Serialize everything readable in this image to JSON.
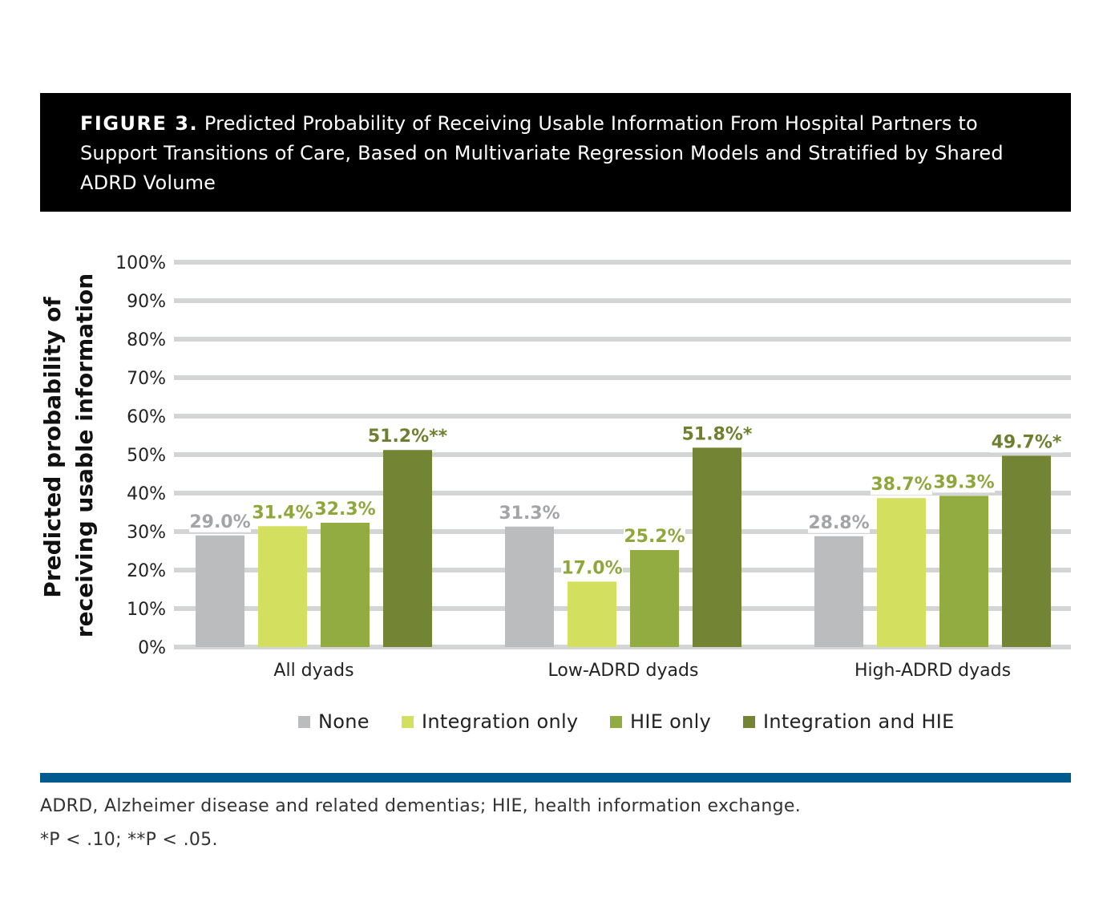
{
  "header": {
    "figure_label": "FIGURE 3.",
    "figure_title": "Predicted Probability of Receiving Usable Information From Hospital Partners to Support Transitions of Care, Based on Multivariate Regression Models and Stratified by Shared ADRD Volume"
  },
  "chart_data": {
    "type": "bar",
    "ylabel_line1": "Predicted probability of",
    "ylabel_line2": "receiving usable information",
    "ylim": [
      0,
      100
    ],
    "yticks": [
      "0%",
      "10%",
      "20%",
      "30%",
      "40%",
      "50%",
      "60%",
      "70%",
      "80%",
      "90%",
      "100%"
    ],
    "categories": [
      "All dyads",
      "Low-ADRD dyads",
      "High-ADRD dyads"
    ],
    "series": [
      {
        "name": "None",
        "color": "#bbbcbe",
        "label_color": "#a3a4a7",
        "values": [
          29.0,
          31.3,
          28.8
        ],
        "labels": [
          "29.0%",
          "31.3%",
          "28.8%"
        ]
      },
      {
        "name": "Integration only",
        "color": "#d3df5e",
        "label_color": "#8fa73a",
        "values": [
          31.4,
          17.0,
          38.7
        ],
        "labels": [
          "31.4%",
          "17.0%",
          "38.7%"
        ]
      },
      {
        "name": "HIE only",
        "color": "#93ac41",
        "label_color": "#8fa73a",
        "values": [
          32.3,
          25.2,
          39.3
        ],
        "labels": [
          "32.3%",
          "25.2%",
          "39.3%"
        ]
      },
      {
        "name": "Integration and HIE",
        "color": "#748435",
        "label_color": "#6f7f30",
        "values": [
          51.2,
          51.8,
          49.7
        ],
        "labels": [
          "51.2%**",
          "51.8%*",
          "49.7%*"
        ]
      }
    ]
  },
  "legend": {
    "items": [
      {
        "label": "None",
        "color": "#bbbcbe"
      },
      {
        "label": "Integration only",
        "color": "#d3df5e"
      },
      {
        "label": "HIE only",
        "color": "#93ac41"
      },
      {
        "label": "Integration and HIE",
        "color": "#748435"
      }
    ]
  },
  "footnotes": {
    "abbreviations": "ADRD, Alzheimer disease and related dementias; HIE, health information exchange.",
    "significance": "*P < .10; **P < .05."
  },
  "colors": {
    "rule": "#005a8e",
    "gridline": "#d3d4d6"
  }
}
